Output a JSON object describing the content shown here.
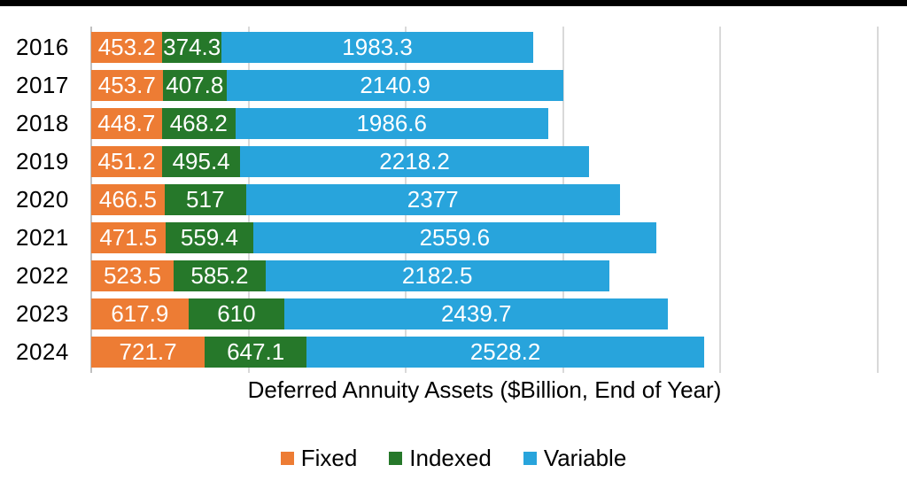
{
  "page": {
    "background_color": "#ffffff",
    "top_border_color": "#000000"
  },
  "chart_data": {
    "type": "bar",
    "orientation": "horizontal",
    "stacked": true,
    "categories": [
      "2016",
      "2017",
      "2018",
      "2019",
      "2020",
      "2021",
      "2022",
      "2023",
      "2024"
    ],
    "series": [
      {
        "name": "Fixed",
        "color": "#ED7C34",
        "values": [
          453.2,
          453.7,
          448.7,
          451.2,
          466.5,
          471.5,
          523.5,
          617.9,
          721.7
        ]
      },
      {
        "name": "Indexed",
        "color": "#26782A",
        "values": [
          374.3,
          407.8,
          468.2,
          495.4,
          517,
          559.4,
          585.2,
          610,
          647.1
        ]
      },
      {
        "name": "Variable",
        "color": "#28A4DC",
        "values": [
          1983.3,
          2140.9,
          1986.6,
          2218.2,
          2377,
          2559.6,
          2182.5,
          2439.7,
          2528.2
        ]
      }
    ],
    "xlabel": "Deferred Annuity Assets ($Billion, End of Year)",
    "ylabel": "",
    "title": "",
    "xlim": [
      0,
      5000
    ],
    "gridline_interval": 1000,
    "grid": true,
    "gridline_color": "#D9D9D9",
    "value_labels": true,
    "value_label_color": "#FFFFFF",
    "legend_position": "bottom",
    "legend_text_color": "#000000"
  }
}
